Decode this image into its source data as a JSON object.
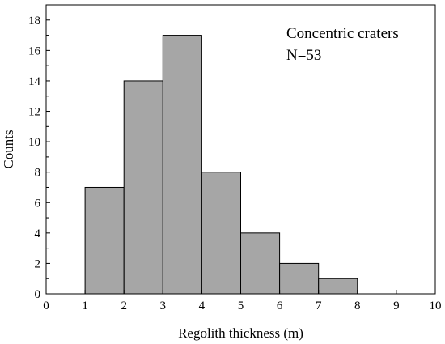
{
  "chart_data": {
    "type": "bar",
    "title": "",
    "xlabel": "Regolith thickness (m)",
    "ylabel": "Counts",
    "xlim": [
      0,
      10
    ],
    "ylim": [
      0,
      19
    ],
    "xticks": [
      0,
      1,
      2,
      3,
      4,
      5,
      6,
      7,
      8,
      9,
      10
    ],
    "yticks": [
      0,
      2,
      4,
      6,
      8,
      10,
      12,
      14,
      16,
      18
    ],
    "bins": [
      {
        "start": 1,
        "end": 2,
        "count": 7
      },
      {
        "start": 2,
        "end": 3,
        "count": 14
      },
      {
        "start": 3,
        "end": 4,
        "count": 17
      },
      {
        "start": 4,
        "end": 5,
        "count": 8
      },
      {
        "start": 5,
        "end": 6,
        "count": 4
      },
      {
        "start": 6,
        "end": 7,
        "count": 2
      },
      {
        "start": 7,
        "end": 8,
        "count": 1
      }
    ],
    "annotation_lines": [
      "Concentric craters",
      "N=53"
    ],
    "bar_color": "#a6a6a6",
    "edge_color": "#000000",
    "grid": false,
    "legend": "none"
  }
}
